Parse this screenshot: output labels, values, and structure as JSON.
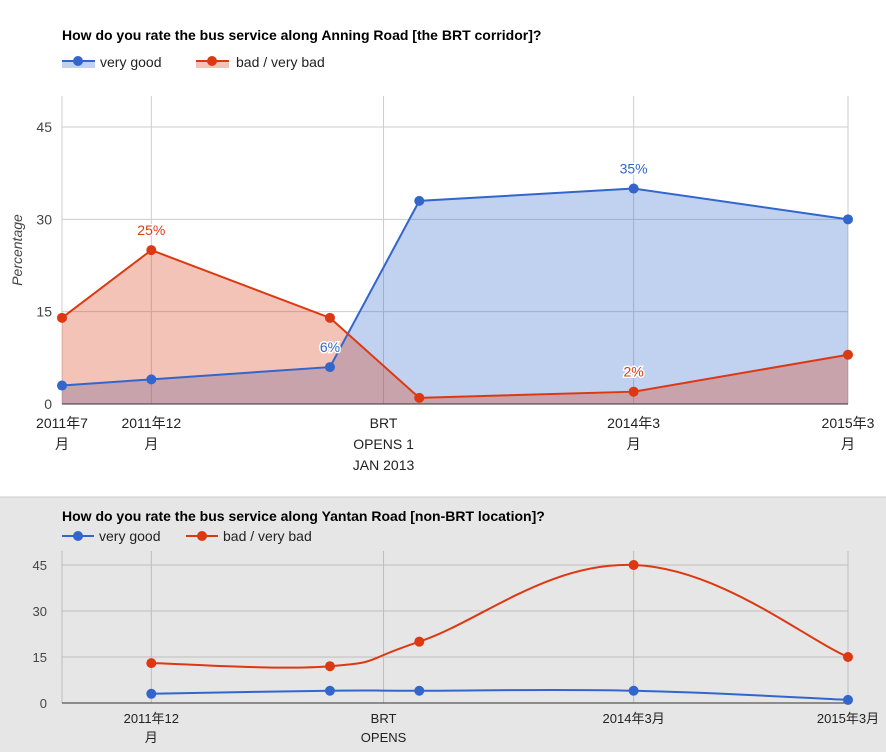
{
  "charts": [
    {
      "title": "How do you rate the bus service along Anning Road [the BRT corridor]?",
      "ylabel": "Percentage",
      "legend": [
        {
          "name": "very good",
          "color": "#3366cc"
        },
        {
          "name": "bad / very bad",
          "color": "#dc3912"
        }
      ]
    },
    {
      "title": "How do you rate the bus service along Yantan Road [non-BRT location]?",
      "ylabel": "",
      "legend": [
        {
          "name": "very good",
          "color": "#3366cc"
        },
        {
          "name": "bad / very bad",
          "color": "#dc3912"
        }
      ]
    }
  ],
  "chart_data": [
    {
      "type": "area",
      "title": "How do you rate the bus service along Anning Road [the BRT corridor]?",
      "xlabel": "",
      "ylabel": "Percentage",
      "ylim": [
        0,
        45
      ],
      "yticks": [
        0,
        15,
        30,
        45
      ],
      "grid": true,
      "legend_position": "top",
      "x": [
        "2011-07",
        "2011-12",
        "2012-10",
        "2013-03",
        "2014-03",
        "2015-03"
      ],
      "xtick_positions": [
        "2011-07",
        "2011-12",
        "2013-01",
        "2014-03",
        "2015-03"
      ],
      "xtick_labels": [
        [
          "2011年7",
          "月"
        ],
        [
          "2011年12",
          "月"
        ],
        [
          "BRT",
          "OPENS 1",
          "JAN 2013"
        ],
        [
          "2014年3",
          "月"
        ],
        [
          "2015年3",
          "月"
        ]
      ],
      "series": [
        {
          "name": "very good",
          "color": "#3366cc",
          "values": [
            3,
            4,
            6,
            33,
            35,
            30
          ],
          "labels": [
            {
              "index": 2,
              "text": "6%"
            },
            {
              "index": 4,
              "text": "35%"
            }
          ]
        },
        {
          "name": "bad / very bad",
          "color": "#dc3912",
          "values": [
            14,
            25,
            14,
            1,
            2,
            8
          ],
          "labels": [
            {
              "index": 1,
              "text": "25%"
            },
            {
              "index": 4,
              "text": "2%"
            }
          ]
        }
      ]
    },
    {
      "type": "line",
      "title": "How do you rate the bus service along Yantan Road [non-BRT location]?",
      "xlabel": "",
      "ylabel": "",
      "ylim": [
        0,
        45
      ],
      "yticks": [
        0,
        15,
        30,
        45
      ],
      "grid": true,
      "legend_position": "top",
      "curved": true,
      "x": [
        "2011-12",
        "2012-10",
        "2013-03",
        "2014-03",
        "2015-03"
      ],
      "xtick_positions": [
        "2011-12",
        "2013-01",
        "2014-03",
        "2015-03"
      ],
      "xtick_labels": [
        [
          "2011年12",
          "月"
        ],
        [
          "BRT",
          "OPENS"
        ],
        [
          "2014年3月"
        ],
        [
          "2015年3月"
        ]
      ],
      "series": [
        {
          "name": "very good",
          "color": "#3366cc",
          "values": [
            3,
            4,
            4,
            4,
            1
          ],
          "labels": []
        },
        {
          "name": "bad / very bad",
          "color": "#dc3912",
          "values": [
            13,
            12,
            20,
            45,
            15
          ],
          "labels": []
        }
      ]
    }
  ]
}
